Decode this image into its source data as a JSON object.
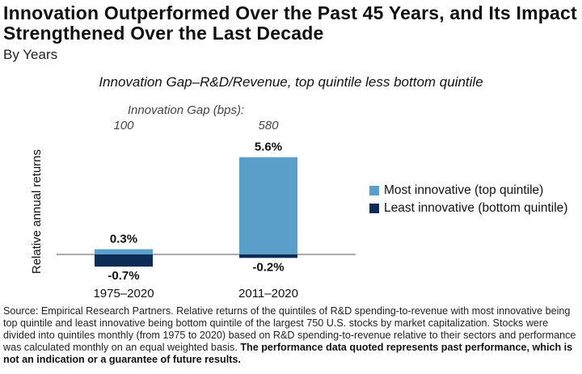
{
  "title": "Innovation Outperformed Over the Past 45 Years, and Its Impact Strengthened Over the Last Decade",
  "subtitle": "By Years",
  "chart_data": {
    "type": "bar",
    "title": "Innovation Gap–R&D/Revenue, top quintile less bottom quintile",
    "ylabel": "Relative annual returns",
    "xlabel": "",
    "ylim": [
      -1.0,
      6.0
    ],
    "categories": [
      "1975–2020",
      "2011–2020"
    ],
    "gap_label": "Innovation Gap (bps):",
    "gap_values": [
      "100",
      "580"
    ],
    "series": [
      {
        "name": "Most innovative (top quintile)",
        "values": [
          0.3,
          5.6
        ],
        "labels": [
          "0.3%",
          "5.6%"
        ],
        "color": "#5a9fc9"
      },
      {
        "name": "Least innovative (bottom quintile)",
        "values": [
          -0.7,
          -0.2
        ],
        "labels": [
          "-0.7%",
          "-0.2%"
        ],
        "color": "#0d2d57"
      }
    ]
  },
  "source": {
    "text": "Source: Empirical Research Partners. Relative returns of the quintiles of R&D spending-to-revenue with most innovative being top quintile and least innovative being bottom quintile of the largest 750 U.S. stocks by market capitalization. Stocks were divided into quintiles monthly (from 1975 to 2020) based on R&D spending-to-revenue relative to their sectors and performance was calculated monthly on an equal weighted basis. ",
    "disclaimer": "The performance data quoted represents past performance, which is not an indication or a guarantee of future results."
  }
}
